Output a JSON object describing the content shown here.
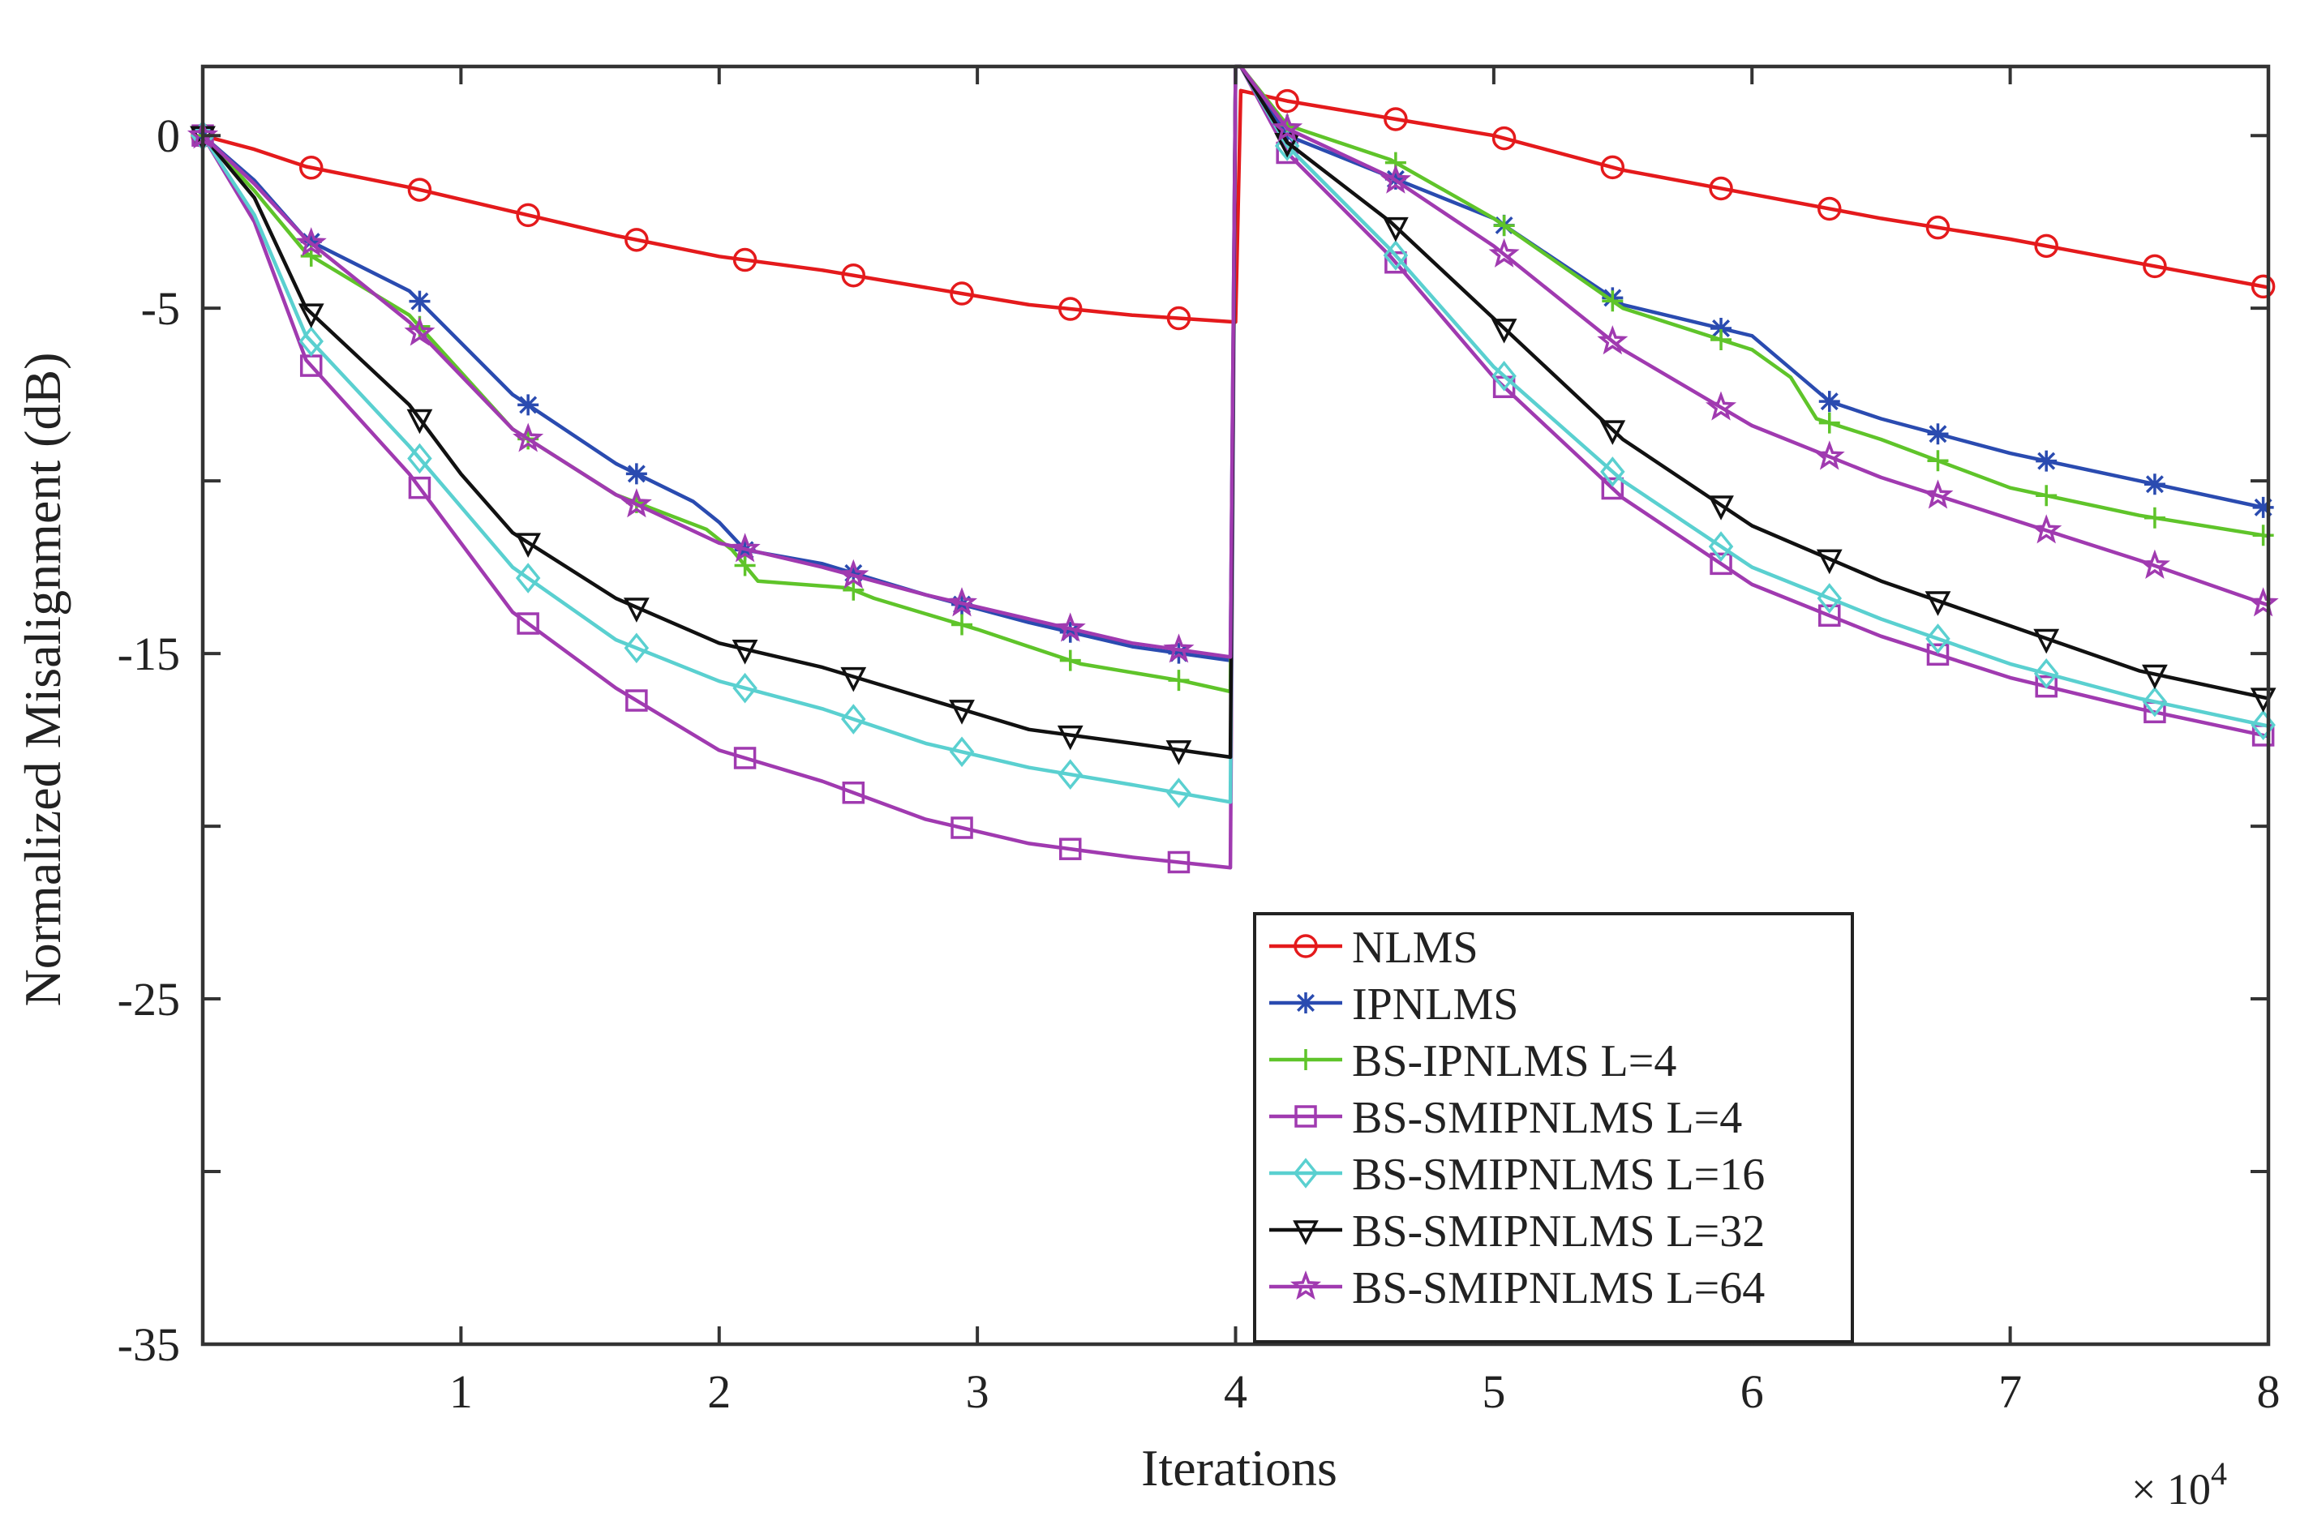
{
  "chart_data": {
    "type": "line",
    "xlabel": "Iterations",
    "x_multiplier": {
      "base": "× 10",
      "exponent": "4"
    },
    "ylabel": "Normalized Misalignment (dB)",
    "xlim": [
      0,
      8
    ],
    "ylim": [
      -35,
      2
    ],
    "x_ticks": [
      1,
      2,
      3,
      4,
      5,
      6,
      7,
      8
    ],
    "x_tick_labels": [
      "1",
      "2",
      "3",
      "4",
      "5",
      "6",
      "7",
      "8"
    ],
    "y_ticks": [
      0,
      -5,
      -15,
      -25,
      -35
    ],
    "y_tick_labels": [
      "0",
      "-5",
      "-15",
      "-25",
      "-35"
    ],
    "y_minor_ticks": [
      -10,
      -20,
      -30
    ],
    "grid": false,
    "legend_position": "bottom-right",
    "series": [
      {
        "name": "NLMS",
        "color": "#e41a1c",
        "marker": "circle",
        "x": [
          0,
          0.2,
          0.4,
          0.8,
          1.2,
          1.6,
          2.0,
          2.4,
          2.8,
          3.2,
          3.6,
          4.0,
          4.02,
          4.2,
          4.6,
          5.0,
          5.5,
          6.0,
          6.5,
          7.0,
          7.5,
          8.0
        ],
        "y": [
          0,
          -0.4,
          -0.9,
          -1.5,
          -2.2,
          -2.9,
          -3.5,
          -3.9,
          -4.4,
          -4.9,
          -5.2,
          -5.4,
          1.3,
          1.0,
          0.5,
          0.0,
          -1.0,
          -1.7,
          -2.4,
          -3.0,
          -3.7,
          -4.4
        ]
      },
      {
        "name": "IPNLMS",
        "color": "#2a4bb0",
        "marker": "asterisk",
        "x": [
          0,
          0.2,
          0.4,
          0.8,
          1.2,
          1.6,
          1.9,
          2.0,
          2.1,
          2.4,
          2.8,
          3.2,
          3.6,
          3.98,
          4.0,
          4.02,
          4.2,
          4.6,
          5.0,
          5.5,
          6.0,
          6.3,
          6.5,
          7.0,
          7.5,
          8.0
        ],
        "y": [
          0,
          -1.3,
          -3.0,
          -4.5,
          -7.5,
          -9.5,
          -10.6,
          -11.2,
          -12.0,
          -12.4,
          -13.3,
          -14.1,
          -14.8,
          -15.2,
          2.0,
          2.0,
          0.0,
          -1.2,
          -2.4,
          -4.9,
          -5.8,
          -7.7,
          -8.2,
          -9.2,
          -10.0,
          -10.8
        ]
      },
      {
        "name": "BS-IPNLMS L=4",
        "color": "#5fc42a",
        "marker": "plus",
        "x": [
          0,
          0.2,
          0.4,
          0.8,
          1.2,
          1.6,
          1.95,
          2.05,
          2.15,
          2.5,
          2.6,
          3.0,
          3.4,
          3.8,
          3.98,
          4.0,
          4.02,
          4.2,
          4.6,
          5.0,
          5.5,
          6.0,
          6.15,
          6.25,
          6.5,
          7.0,
          7.5,
          8.0
        ],
        "y": [
          0,
          -1.6,
          -3.4,
          -5.2,
          -8.5,
          -10.4,
          -11.4,
          -12.0,
          -12.9,
          -13.1,
          -13.4,
          -14.3,
          -15.3,
          -15.8,
          -16.1,
          2.0,
          2.0,
          0.3,
          -0.7,
          -2.4,
          -5.0,
          -6.2,
          -7.0,
          -8.2,
          -8.8,
          -10.2,
          -11.0,
          -11.6
        ]
      },
      {
        "name": "BS-SMIPNLMS L=4",
        "color": "#a03ab0",
        "marker": "square",
        "x": [
          0,
          0.2,
          0.4,
          0.8,
          1.2,
          1.6,
          2.0,
          2.4,
          2.8,
          3.2,
          3.6,
          3.98,
          4.0,
          4.02,
          4.2,
          4.6,
          5.0,
          5.5,
          6.0,
          6.5,
          7.0,
          7.5,
          8.0
        ],
        "y": [
          0,
          -2.5,
          -6.5,
          -9.8,
          -13.8,
          -16.0,
          -17.8,
          -18.7,
          -19.8,
          -20.5,
          -20.9,
          -21.2,
          2.0,
          2.0,
          -0.5,
          -3.5,
          -7.0,
          -10.5,
          -13.0,
          -14.5,
          -15.7,
          -16.6,
          -17.4
        ]
      },
      {
        "name": "BS-SMIPNLMS L=16",
        "color": "#5ad0d0",
        "marker": "diamond",
        "x": [
          0,
          0.2,
          0.4,
          0.8,
          1.2,
          1.6,
          2.0,
          2.4,
          2.8,
          3.2,
          3.6,
          3.98,
          4.0,
          4.02,
          4.2,
          4.6,
          5.0,
          5.5,
          6.0,
          6.5,
          7.0,
          7.5,
          8.0
        ],
        "y": [
          0,
          -2.3,
          -5.8,
          -9.0,
          -12.5,
          -14.6,
          -15.8,
          -16.6,
          -17.6,
          -18.3,
          -18.8,
          -19.3,
          2.0,
          2.0,
          -0.3,
          -3.3,
          -6.7,
          -10.0,
          -12.5,
          -14.0,
          -15.3,
          -16.3,
          -17.1
        ]
      },
      {
        "name": "BS-SMIPNLMS L=32",
        "color": "#111111",
        "marker": "triangle-down",
        "x": [
          0,
          0.2,
          0.4,
          0.8,
          1.0,
          1.2,
          1.6,
          2.0,
          2.4,
          2.8,
          3.2,
          3.6,
          3.98,
          4.0,
          4.02,
          4.2,
          4.6,
          5.0,
          5.5,
          6.0,
          6.5,
          7.0,
          7.5,
          8.0
        ],
        "y": [
          0,
          -1.8,
          -5.0,
          -7.8,
          -9.8,
          -11.5,
          -13.4,
          -14.7,
          -15.4,
          -16.3,
          -17.2,
          -17.6,
          -18.0,
          2.0,
          2.0,
          -0.2,
          -2.5,
          -5.3,
          -8.8,
          -11.3,
          -12.9,
          -14.2,
          -15.5,
          -16.3
        ]
      },
      {
        "name": "BS-SMIPNLMS L=64",
        "color": "#a03ab0",
        "marker": "star",
        "x": [
          0,
          0.2,
          0.4,
          0.8,
          1.2,
          1.6,
          2.0,
          2.4,
          2.8,
          3.2,
          3.6,
          3.98,
          4.0,
          4.02,
          4.2,
          4.6,
          5.0,
          5.5,
          6.0,
          6.5,
          7.0,
          7.5,
          8.0
        ],
        "y": [
          0,
          -1.4,
          -3.0,
          -5.4,
          -8.5,
          -10.4,
          -11.8,
          -12.5,
          -13.3,
          -14.0,
          -14.7,
          -15.1,
          2.0,
          2.0,
          0.2,
          -1.2,
          -3.2,
          -6.2,
          -8.4,
          -9.9,
          -11.1,
          -12.3,
          -13.6
        ]
      }
    ]
  }
}
